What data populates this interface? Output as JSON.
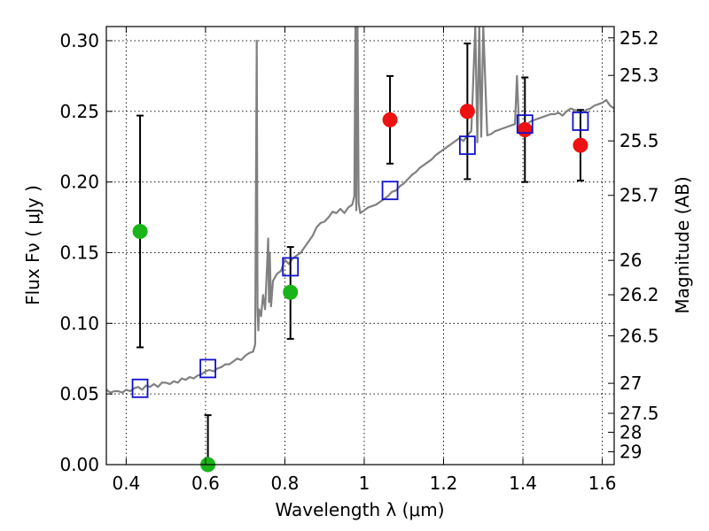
{
  "chart_data": {
    "type": "scatter",
    "xlabel": "Wavelength  λ (μm)",
    "ylabel": "Flux  Fν  ( μJy )",
    "ylabel_right": "Magnitude (AB)",
    "xlim": [
      0.35,
      1.63
    ],
    "ylim": [
      0.0,
      0.31
    ],
    "grid": true,
    "x_ticks": [
      {
        "value": 0.4,
        "label": "0.4"
      },
      {
        "value": 0.6,
        "label": "0.6"
      },
      {
        "value": 0.8,
        "label": "0.8"
      },
      {
        "value": 1.0,
        "label": "1"
      },
      {
        "value": 1.2,
        "label": "1.2"
      },
      {
        "value": 1.4,
        "label": "1.4"
      },
      {
        "value": 1.6,
        "label": "1.6"
      }
    ],
    "y_ticks": [
      {
        "value": 0.0,
        "label": "0.00"
      },
      {
        "value": 0.05,
        "label": "0.05"
      },
      {
        "value": 0.1,
        "label": "0.10"
      },
      {
        "value": 0.15,
        "label": "0.15"
      },
      {
        "value": 0.2,
        "label": "0.20"
      },
      {
        "value": 0.25,
        "label": "0.25"
      },
      {
        "value": 0.3,
        "label": "0.30"
      }
    ],
    "magnitude_ticks": [
      {
        "value": 25.2,
        "label": "25.2"
      },
      {
        "value": 25.3,
        "label": "25.3"
      },
      {
        "value": 25.5,
        "label": "25.5"
      },
      {
        "value": 25.7,
        "label": "25.7"
      },
      {
        "value": 26.0,
        "label": "26"
      },
      {
        "value": 26.2,
        "label": "26.2"
      },
      {
        "value": 26.5,
        "label": "26.5"
      },
      {
        "value": 27.0,
        "label": "27"
      },
      {
        "value": 27.5,
        "label": "27.5"
      },
      {
        "value": 28.0,
        "label": "28"
      },
      {
        "value": 29.0,
        "label": "29"
      }
    ],
    "series": [
      {
        "kind": "line",
        "color": "#808080",
        "x": [
          0.35,
          0.36,
          0.37,
          0.38,
          0.39,
          0.4,
          0.41,
          0.42,
          0.43,
          0.44,
          0.45,
          0.46,
          0.47,
          0.48,
          0.49,
          0.5,
          0.51,
          0.52,
          0.53,
          0.54,
          0.55,
          0.56,
          0.57,
          0.58,
          0.59,
          0.6,
          0.61,
          0.62,
          0.63,
          0.64,
          0.65,
          0.66,
          0.67,
          0.68,
          0.69,
          0.7,
          0.71,
          0.72,
          0.725,
          0.729,
          0.731,
          0.733,
          0.735,
          0.74,
          0.745,
          0.75,
          0.755,
          0.758,
          0.76,
          0.762,
          0.765,
          0.77,
          0.78,
          0.79,
          0.8,
          0.81,
          0.82,
          0.83,
          0.84,
          0.85,
          0.86,
          0.87,
          0.88,
          0.89,
          0.9,
          0.91,
          0.92,
          0.93,
          0.94,
          0.95,
          0.96,
          0.97,
          0.975,
          0.978,
          0.98,
          0.983,
          0.986,
          0.99,
          1.0,
          1.01,
          1.02,
          1.03,
          1.04,
          1.05,
          1.06,
          1.07,
          1.08,
          1.09,
          1.1,
          1.11,
          1.12,
          1.13,
          1.14,
          1.15,
          1.16,
          1.17,
          1.18,
          1.19,
          1.2,
          1.21,
          1.22,
          1.23,
          1.24,
          1.25,
          1.26,
          1.27,
          1.28,
          1.285,
          1.29,
          1.295,
          1.3,
          1.31,
          1.32,
          1.33,
          1.34,
          1.35,
          1.36,
          1.37,
          1.38,
          1.385,
          1.39,
          1.395,
          1.4,
          1.41,
          1.42,
          1.43,
          1.44,
          1.45,
          1.46,
          1.47,
          1.48,
          1.49,
          1.5,
          1.51,
          1.52,
          1.53,
          1.54,
          1.55,
          1.56,
          1.57,
          1.58,
          1.59,
          1.6,
          1.61,
          1.62,
          1.63
        ],
        "y": [
          0.053,
          0.051,
          0.052,
          0.052,
          0.051,
          0.053,
          0.052,
          0.054,
          0.055,
          0.053,
          0.056,
          0.055,
          0.057,
          0.055,
          0.058,
          0.058,
          0.057,
          0.059,
          0.058,
          0.061,
          0.06,
          0.062,
          0.061,
          0.063,
          0.064,
          0.066,
          0.067,
          0.066,
          0.068,
          0.069,
          0.071,
          0.071,
          0.073,
          0.075,
          0.074,
          0.077,
          0.079,
          0.08,
          0.085,
          0.3,
          0.11,
          0.095,
          0.11,
          0.105,
          0.12,
          0.11,
          0.14,
          0.16,
          0.115,
          0.15,
          0.112,
          0.13,
          0.135,
          0.137,
          0.145,
          0.142,
          0.146,
          0.148,
          0.15,
          0.154,
          0.158,
          0.162,
          0.168,
          0.171,
          0.172,
          0.175,
          0.179,
          0.178,
          0.181,
          0.178,
          0.182,
          0.184,
          0.19,
          0.31,
          0.18,
          0.31,
          0.185,
          0.178,
          0.18,
          0.182,
          0.183,
          0.184,
          0.186,
          0.188,
          0.19,
          0.193,
          0.194,
          0.197,
          0.199,
          0.202,
          0.205,
          0.207,
          0.21,
          0.212,
          0.214,
          0.216,
          0.219,
          0.221,
          0.223,
          0.225,
          0.227,
          0.229,
          0.231,
          0.229,
          0.233,
          0.236,
          0.31,
          0.228,
          0.31,
          0.232,
          0.31,
          0.233,
          0.234,
          0.236,
          0.237,
          0.238,
          0.239,
          0.24,
          0.241,
          0.275,
          0.24,
          0.237,
          0.238,
          0.241,
          0.243,
          0.244,
          0.245,
          0.246,
          0.247,
          0.248,
          0.248,
          0.249,
          0.247,
          0.25,
          0.252,
          0.251,
          0.25,
          0.249,
          0.251,
          0.252,
          0.254,
          0.255,
          0.256,
          0.258,
          0.254,
          0.252
        ]
      },
      {
        "kind": "points",
        "marker": "circle",
        "color": "#19b419",
        "points": [
          {
            "x": 0.435,
            "y": 0.165,
            "yerr_low": 0.083,
            "yerr_high": 0.247
          },
          {
            "x": 0.606,
            "y": 0.0,
            "yerr_low": 0.0,
            "yerr_high": 0.035
          },
          {
            "x": 0.814,
            "y": 0.122,
            "yerr_low": 0.089,
            "yerr_high": 0.154
          }
        ]
      },
      {
        "kind": "points",
        "marker": "circle",
        "color": "#ee1111",
        "points": [
          {
            "x": 1.065,
            "y": 0.244,
            "yerr_low": 0.213,
            "yerr_high": 0.275
          },
          {
            "x": 1.26,
            "y": 0.25,
            "yerr_low": 0.202,
            "yerr_high": 0.298
          },
          {
            "x": 1.405,
            "y": 0.237,
            "yerr_low": 0.2,
            "yerr_high": 0.274
          },
          {
            "x": 1.545,
            "y": 0.226,
            "yerr_low": 0.201,
            "yerr_high": 0.251
          }
        ]
      },
      {
        "kind": "points",
        "marker": "square",
        "color": "#1111cc",
        "points": [
          {
            "x": 0.435,
            "y": 0.054
          },
          {
            "x": 0.606,
            "y": 0.068
          },
          {
            "x": 0.814,
            "y": 0.14
          },
          {
            "x": 1.065,
            "y": 0.194
          },
          {
            "x": 1.26,
            "y": 0.226
          },
          {
            "x": 1.405,
            "y": 0.241
          },
          {
            "x": 1.545,
            "y": 0.243
          }
        ]
      }
    ]
  }
}
